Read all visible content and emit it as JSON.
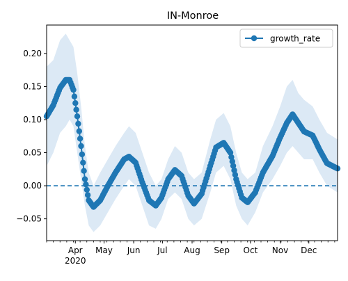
{
  "chart_data": {
    "type": "line",
    "title": "IN-Monroe",
    "xlabel": "",
    "ylabel": "",
    "x_range": [
      "2020-03-02",
      "2020-12-31"
    ],
    "ylim": [
      -0.083,
      0.243
    ],
    "yticks": [
      -0.05,
      0.0,
      0.05,
      0.1,
      0.15,
      0.2
    ],
    "ytick_labels": [
      "−0.05",
      "0.00",
      "0.05",
      "0.10",
      "0.15",
      "0.20"
    ],
    "xticks": [
      {
        "date": "2020-04-01",
        "label": "Apr",
        "sublabel": "2020"
      },
      {
        "date": "2020-05-01",
        "label": "May"
      },
      {
        "date": "2020-06-01",
        "label": "Jun"
      },
      {
        "date": "2020-07-01",
        "label": "Jul"
      },
      {
        "date": "2020-08-01",
        "label": "Aug"
      },
      {
        "date": "2020-09-01",
        "label": "Sep"
      },
      {
        "date": "2020-10-01",
        "label": "Oct"
      },
      {
        "date": "2020-11-01",
        "label": "Nov"
      },
      {
        "date": "2020-12-01",
        "label": "Dec"
      }
    ],
    "grid": false,
    "legend_position": "top-right",
    "reference_line": {
      "y": 0.0,
      "style": "dashed"
    },
    "series": [
      {
        "name": "growth_rate",
        "color": "#1f77b4",
        "band_color": "#dce9f5",
        "points": [
          [
            "2020-03-02",
            0.105,
            0.03,
            0.18
          ],
          [
            "2020-03-09",
            0.122,
            0.05,
            0.19
          ],
          [
            "2020-03-16",
            0.148,
            0.08,
            0.22
          ],
          [
            "2020-03-22",
            0.16,
            0.09,
            0.23
          ],
          [
            "2020-03-26",
            0.16,
            0.1,
            0.22
          ],
          [
            "2020-03-30",
            0.145,
            0.09,
            0.21
          ],
          [
            "2020-04-03",
            0.105,
            0.05,
            0.17
          ],
          [
            "2020-04-07",
            0.06,
            0.01,
            0.12
          ],
          [
            "2020-04-11",
            0.01,
            -0.03,
            0.06
          ],
          [
            "2020-04-15",
            -0.022,
            -0.06,
            0.02
          ],
          [
            "2020-04-20",
            -0.032,
            -0.07,
            0.0
          ],
          [
            "2020-04-27",
            -0.022,
            -0.06,
            0.02
          ],
          [
            "2020-05-05",
            0.0,
            -0.04,
            0.04
          ],
          [
            "2020-05-13",
            0.02,
            -0.02,
            0.06
          ],
          [
            "2020-05-22",
            0.04,
            0.0,
            0.08
          ],
          [
            "2020-05-27",
            0.044,
            0.01,
            0.09
          ],
          [
            "2020-06-03",
            0.035,
            0.0,
            0.08
          ],
          [
            "2020-06-10",
            0.005,
            -0.03,
            0.05
          ],
          [
            "2020-06-17",
            -0.022,
            -0.06,
            0.02
          ],
          [
            "2020-06-24",
            -0.03,
            -0.065,
            0.0
          ],
          [
            "2020-06-30",
            -0.018,
            -0.05,
            0.01
          ],
          [
            "2020-07-07",
            0.01,
            -0.02,
            0.04
          ],
          [
            "2020-07-14",
            0.024,
            -0.01,
            0.06
          ],
          [
            "2020-07-21",
            0.015,
            -0.02,
            0.05
          ],
          [
            "2020-07-28",
            -0.015,
            -0.05,
            0.02
          ],
          [
            "2020-08-03",
            -0.027,
            -0.06,
            0.01
          ],
          [
            "2020-08-11",
            -0.012,
            -0.05,
            0.02
          ],
          [
            "2020-08-20",
            0.03,
            -0.01,
            0.07
          ],
          [
            "2020-08-26",
            0.058,
            0.02,
            0.1
          ],
          [
            "2020-09-03",
            0.065,
            0.03,
            0.11
          ],
          [
            "2020-09-10",
            0.05,
            0.01,
            0.09
          ],
          [
            "2020-09-16",
            0.01,
            -0.03,
            0.05
          ],
          [
            "2020-09-22",
            -0.018,
            -0.05,
            0.02
          ],
          [
            "2020-09-28",
            -0.025,
            -0.06,
            0.01
          ],
          [
            "2020-10-06",
            -0.01,
            -0.04,
            0.02
          ],
          [
            "2020-10-14",
            0.02,
            -0.01,
            0.06
          ],
          [
            "2020-10-24",
            0.045,
            0.01,
            0.09
          ],
          [
            "2020-11-01",
            0.073,
            0.03,
            0.12
          ],
          [
            "2020-11-08",
            0.095,
            0.05,
            0.15
          ],
          [
            "2020-11-14",
            0.108,
            0.06,
            0.16
          ],
          [
            "2020-11-20",
            0.095,
            0.05,
            0.14
          ],
          [
            "2020-11-26",
            0.082,
            0.04,
            0.13
          ],
          [
            "2020-12-05",
            0.076,
            0.04,
            0.12
          ],
          [
            "2020-12-12",
            0.055,
            0.02,
            0.1
          ],
          [
            "2020-12-20",
            0.034,
            0.0,
            0.08
          ],
          [
            "2020-12-31",
            0.026,
            -0.01,
            0.07
          ]
        ]
      }
    ]
  }
}
